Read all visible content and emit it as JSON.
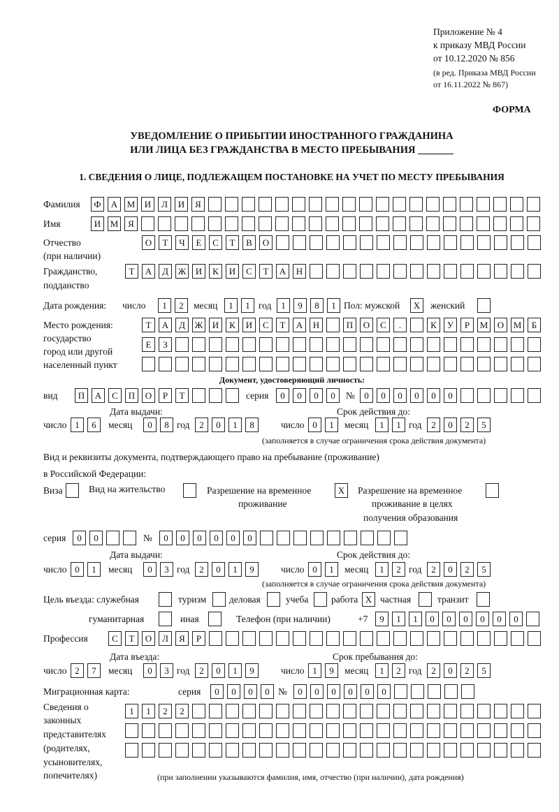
{
  "header": {
    "appendix": "Приложение № 4",
    "order": "к приказу МВД России",
    "order_date": "от 10.12.2020 № 856",
    "edition1": "(в ред. Приказа МВД России",
    "edition2": "от 16.11.2022 № 867)",
    "form": "ФОРМА",
    "title1": "УВЕДОМЛЕНИЕ О ПРИБЫТИИ ИНОСТРАННОГО ГРАЖДАНИНА",
    "title2": "ИЛИ ЛИЦА БЕЗ ГРАЖДАНСТВА В МЕСТО ПРЕБЫВАНИЯ _______",
    "section1": "1. СВЕДЕНИЯ О ЛИЦЕ, ПОДЛЕЖАЩЕМ ПОСТАНОВКЕ НА УЧЕТ ПО МЕСТУ ПРЕБЫВАНИЯ"
  },
  "labels": {
    "surname": "Фамилия",
    "name": "Имя",
    "patronymic": "Отчество",
    "patronymic2": "(при наличии)",
    "citizenship": "Гражданство,",
    "citizenship2": "подданство",
    "birth_date": "Дата рождения:",
    "day": "число",
    "month": "месяц",
    "year": "год",
    "sex": "Пол: мужской",
    "female": "женский",
    "birth_place": "Место рождения:",
    "bp2": "государство",
    "bp3": "город или другой",
    "bp4": "населенный пункт",
    "id_doc": "Документ, удостоверяющий личность:",
    "kind": "вид",
    "series": "серия",
    "number": "№",
    "issue_date": "Дата выдачи:",
    "valid_until": "Срок действия до:",
    "valid_note": "(заполняется в случае ограничения срока действия документа)",
    "right_doc1": "Вид и реквизиты документа, подтверждающего право на пребывание (проживание)",
    "right_doc2": "в Российской Федерации:",
    "visa": "Виза",
    "residence": "Вид на жительство",
    "trp1": "Разрешение на временное",
    "trp2": "проживание",
    "trp_edu1": "Разрешение на временное",
    "trp_edu2": "проживание в целях",
    "trp_edu3": "получения образования",
    "purpose": "Цель въезда: служебная",
    "tourism": "туризм",
    "business": "деловая",
    "study": "учеба",
    "work": "работа",
    "private": "частная",
    "transit": "транзит",
    "humanitarian": "гуманитарная",
    "other": "иная",
    "phone": "Телефон (при наличии)",
    "phone_prefix": "+7",
    "profession": "Профессия",
    "entry_date": "Дата въезда:",
    "stay_until": "Срок пребывания до:",
    "migration_card": "Миграционная карта:",
    "reps1": "Сведения о",
    "reps2": "законных",
    "reps3": "представителях",
    "reps4": "(родителях,",
    "reps5": "усыновителях,",
    "reps6": "попечителях)",
    "reps_note": "(при заполнении указываются фамилия, имя, отчество (при наличии), дата рождения)"
  },
  "person": {
    "surname": "ФАМИЛИЯ",
    "name": "ИМЯ",
    "patronymic": "ОТЧЕСТВО",
    "citizenship": "ТАДЖИКИСТАН",
    "birth_day": "12",
    "birth_month": "11",
    "birth_year": "1981",
    "male": "X",
    "female": "",
    "birth_place1": "ТАДЖИКИСТАН ПОС. КУРМОМБ",
    "birth_place2": "ЕЗ",
    "birth_place3": ""
  },
  "id_document": {
    "kind": "ПАСПОРТ",
    "series": "0000",
    "number": "000000",
    "issue_day": "16",
    "issue_month": "08",
    "issue_year": "2018",
    "valid_day": "01",
    "valid_month": "11",
    "valid_year": "2025"
  },
  "right_document": {
    "visa": "",
    "residence": "",
    "trp": "X",
    "trp_edu": "",
    "series": "00",
    "number": "000000",
    "issue_day": "01",
    "issue_month": "03",
    "issue_year": "2019",
    "valid_day": "01",
    "valid_month": "12",
    "valid_year": "2025"
  },
  "purpose": {
    "official": "",
    "tourism": "",
    "business": "",
    "study": "",
    "work": "X",
    "private": "",
    "transit": "",
    "humanitarian": "",
    "other": "",
    "phone": "911000000",
    "profession": "СТОЛЯР",
    "entry_day": "27",
    "entry_month": "03",
    "entry_year": "2019",
    "stay_day": "19",
    "stay_month": "12",
    "stay_year": "2025",
    "mc_series": "0000",
    "mc_number": "000000",
    "reps1": "1122",
    "reps2": "",
    "reps3": ""
  }
}
